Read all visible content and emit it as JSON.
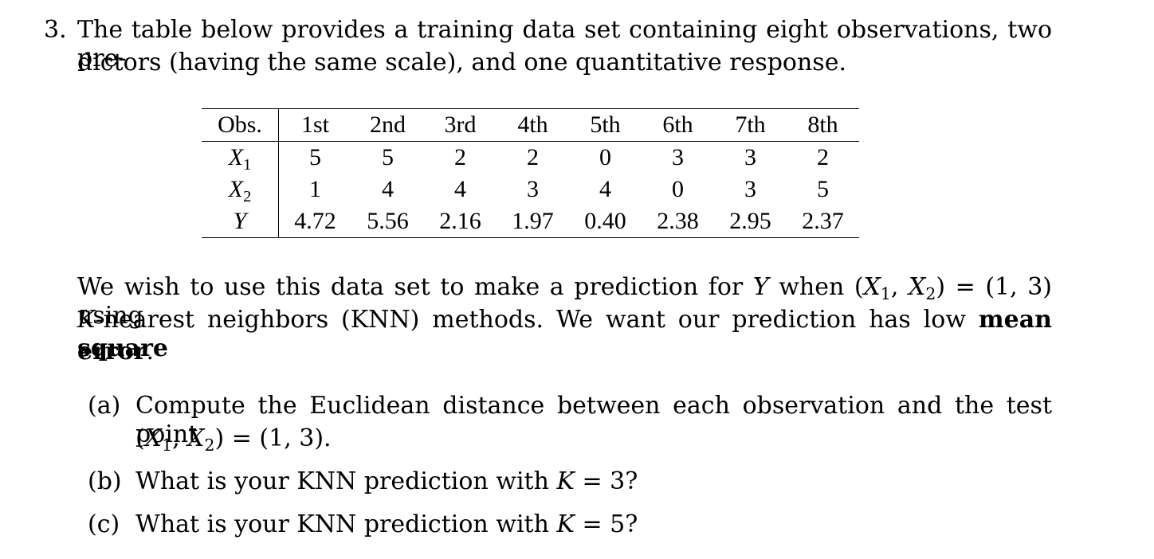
{
  "problem": {
    "number": "3.",
    "intro_line1": "The table below provides a training data set containing eight observations, two pre-",
    "intro_line2": "dictors (having the same scale), and one quantitative response."
  },
  "table": {
    "header_label": "Obs.",
    "columns": [
      "1st",
      "2nd",
      "3rd",
      "4th",
      "5th",
      "6th",
      "7th",
      "8th"
    ],
    "rows": [
      {
        "var": "X",
        "sub": "1",
        "values": [
          "5",
          "5",
          "2",
          "2",
          "0",
          "3",
          "3",
          "2"
        ]
      },
      {
        "var": "X",
        "sub": "2",
        "values": [
          "1",
          "4",
          "4",
          "3",
          "4",
          "0",
          "3",
          "5"
        ]
      },
      {
        "var": "Y",
        "sub": "",
        "values": [
          "4.72",
          "5.56",
          "2.16",
          "1.97",
          "0.40",
          "2.38",
          "2.95",
          "2.37"
        ]
      }
    ]
  },
  "paragraph": {
    "p1_a": "We wish to use this data set to make a prediction for ",
    "p1_Y": "Y",
    "p1_b": " when (",
    "p1_X1": "X",
    "p1_sub1": "1",
    "p1_comma": ", ",
    "p1_X2": "X",
    "p1_sub2": "2",
    "p1_c": ") = (1, 3) using",
    "p2_K": "K",
    "p2_a": "-nearest neighbors (KNN) methods. We want our prediction has low ",
    "p2_bold": "mean square",
    "p3_bold": "error",
    "p3_end": "."
  },
  "questions": [
    {
      "label": "(a)",
      "line1": "Compute the Euclidean distance between each observation and the test point",
      "line2_open": "(",
      "line2_X1": "X",
      "line2_sub1": "1",
      "line2_comma": ", ",
      "line2_X2": "X",
      "line2_sub2": "2",
      "line2_close": ") = (1, 3)."
    },
    {
      "label": "(b)",
      "text_a": "What is your KNN prediction with ",
      "K": "K",
      "text_b": " = 3?"
    },
    {
      "label": "(c)",
      "text_a": "What is your KNN prediction with ",
      "K": "K",
      "text_b": " = 5?"
    }
  ]
}
